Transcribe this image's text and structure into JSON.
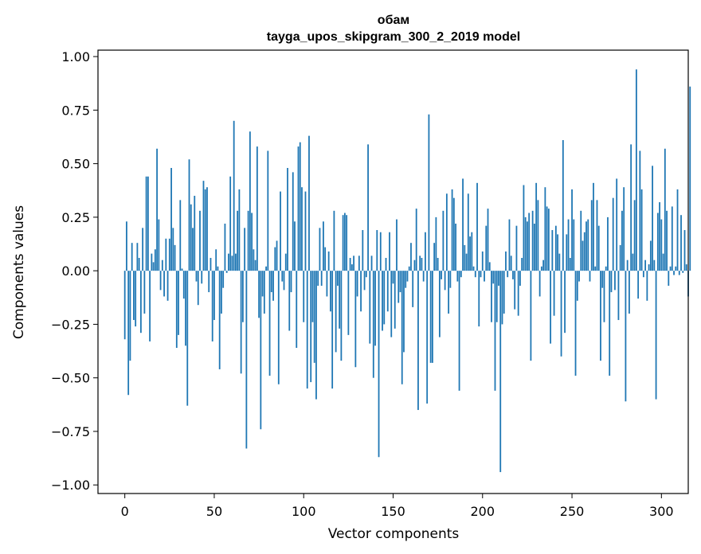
{
  "chart_data": {
    "type": "bar",
    "title": "обам",
    "subtitle": "tayga_upos_skipgram_300_2_2019 model",
    "xlabel": "Vector components",
    "ylabel": "Components values",
    "xlim": [
      -15,
      315
    ],
    "ylim": [
      -1.04,
      1.03
    ],
    "xticks": [
      0,
      50,
      100,
      150,
      200,
      250,
      300
    ],
    "xtick_labels": [
      "0",
      "50",
      "100",
      "150",
      "200",
      "250",
      "300"
    ],
    "yticks": [
      1.0,
      0.75,
      0.5,
      0.25,
      0.0,
      -0.25,
      -0.5,
      -0.75,
      -1.0
    ],
    "ytick_labels": [
      "1.00",
      "0.75",
      "0.50",
      "0.25",
      "0.00",
      "−0.25",
      "−0.50",
      "−0.75",
      "−1.00"
    ],
    "grid": false,
    "bar_color": "#1f77b4",
    "values": [
      -0.32,
      0.23,
      -0.58,
      -0.42,
      0.13,
      -0.23,
      -0.26,
      0.13,
      0.06,
      -0.29,
      0.2,
      -0.2,
      0.44,
      0.44,
      -0.33,
      0.08,
      0.04,
      0.1,
      0.57,
      0.24,
      -0.09,
      0.05,
      -0.12,
      0.15,
      -0.14,
      0.15,
      0.48,
      0.2,
      0.12,
      -0.36,
      -0.3,
      0.33,
      0.01,
      -0.13,
      -0.35,
      -0.63,
      0.52,
      0.31,
      0.2,
      0.35,
      -0.05,
      -0.16,
      0.28,
      -0.06,
      0.42,
      0.38,
      0.39,
      -0.1,
      0.06,
      -0.33,
      -0.23,
      0.1,
      0.02,
      -0.46,
      -0.2,
      -0.08,
      0.22,
      -0.01,
      0.08,
      0.44,
      0.07,
      0.7,
      0.08,
      0.28,
      0.38,
      -0.48,
      -0.24,
      0.2,
      -0.83,
      0.28,
      0.65,
      0.27,
      0.1,
      0.05,
      0.58,
      -0.22,
      -0.74,
      -0.12,
      -0.2,
      0.02,
      0.56,
      -0.49,
      -0.1,
      -0.14,
      0.11,
      0.14,
      -0.53,
      0.37,
      -0.05,
      -0.09,
      0.08,
      0.48,
      -0.28,
      -0.1,
      0.46,
      0.23,
      -0.36,
      0.58,
      0.6,
      0.39,
      -0.24,
      0.37,
      -0.55,
      0.63,
      -0.52,
      -0.24,
      -0.43,
      -0.6,
      -0.07,
      0.2,
      -0.07,
      0.23,
      0.11,
      -0.12,
      0.09,
      -0.19,
      -0.55,
      0.28,
      -0.38,
      -0.07,
      -0.27,
      -0.42,
      0.26,
      0.27,
      0.26,
      -0.3,
      0.06,
      0.03,
      0.07,
      -0.45,
      -0.12,
      0.07,
      -0.19,
      0.19,
      -0.09,
      -0.03,
      0.59,
      -0.34,
      0.07,
      -0.5,
      -0.35,
      0.19,
      -0.87,
      0.18,
      -0.28,
      -0.25,
      0.06,
      -0.19,
      0.18,
      -0.31,
      -0.06,
      -0.27,
      0.24,
      -0.15,
      -0.1,
      -0.53,
      -0.38,
      -0.08,
      -0.05,
      0.02,
      0.13,
      -0.17,
      0.05,
      0.29,
      -0.65,
      0.07,
      0.06,
      -0.05,
      0.18,
      -0.62,
      0.73,
      -0.43,
      -0.43,
      0.13,
      0.25,
      0.06,
      -0.31,
      -0.04,
      0.28,
      -0.09,
      0.36,
      -0.2,
      -0.08,
      0.38,
      0.34,
      0.22,
      -0.05,
      -0.56,
      -0.03,
      0.43,
      0.12,
      0.08,
      0.36,
      0.16,
      0.18,
      0.02,
      -0.03,
      0.41,
      -0.26,
      -0.03,
      0.09,
      -0.05,
      0.21,
      0.29,
      0.04,
      -0.24,
      -0.06,
      -0.56,
      -0.24,
      -0.07,
      -0.94,
      -0.25,
      -0.2,
      0.09,
      -0.03,
      0.24,
      0.07,
      -0.04,
      -0.18,
      0.21,
      -0.21,
      -0.07,
      0.06,
      0.4,
      0.25,
      0.23,
      0.27,
      -0.42,
      0.28,
      0.22,
      0.41,
      0.33,
      -0.12,
      0.02,
      0.05,
      0.39,
      0.3,
      0.29,
      -0.34,
      0.19,
      -0.21,
      0.21,
      0.17,
      0.08,
      -0.4,
      0.61,
      -0.29,
      0.17,
      0.24,
      0.06,
      0.38,
      0.24,
      -0.49,
      -0.14,
      -0.05,
      0.28,
      0.14,
      0.18,
      0.23,
      0.24,
      -0.05,
      0.33,
      0.41,
      0.02,
      0.33,
      0.21,
      -0.42,
      -0.08,
      -0.24,
      0.02,
      0.25,
      -0.49,
      -0.1,
      0.34,
      -0.09,
      0.43,
      -0.23,
      0.12,
      0.28,
      0.39,
      -0.61,
      0.05,
      -0.2,
      0.59,
      0.08,
      0.33,
      0.94,
      -0.13,
      0.56,
      0.38,
      -0.03,
      0.05,
      -0.14,
      0.03,
      0.14,
      0.49,
      0.05,
      -0.6,
      0.27,
      0.32,
      0.24,
      0.08,
      0.57,
      0.28,
      -0.07,
      0.02,
      0.3,
      -0.02,
      0.02,
      0.38,
      -0.02,
      0.26,
      -0.01,
      0.19,
      0.03,
      -0.12,
      0.86
    ]
  }
}
